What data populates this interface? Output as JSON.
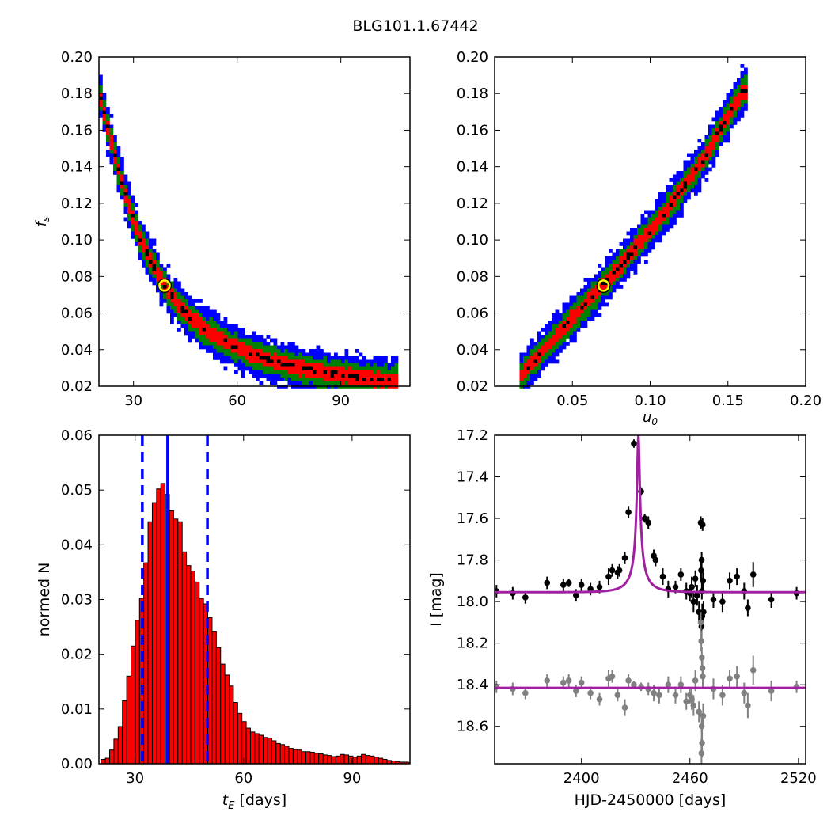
{
  "title": "BLG101.1.67442",
  "chart_data": [
    {
      "type": "heatmap",
      "panel": "top-left",
      "xlabel": "",
      "ylabel": "f_s",
      "xlim": [
        20,
        110
      ],
      "ylim": [
        0.02,
        0.2
      ],
      "xticks": [
        30,
        60,
        90
      ],
      "yticks": [
        0.02,
        0.04,
        0.06,
        0.08,
        0.1,
        0.12,
        0.14,
        0.16,
        0.18,
        0.2
      ],
      "best_fit": {
        "x": 39,
        "y": 0.075
      },
      "contour_colors": {
        "outer": "#0000ff",
        "middle": "#008000",
        "inner": "#ff0000",
        "core": "#000000"
      },
      "ridge": [
        {
          "x": 20,
          "y": 0.182
        },
        {
          "x": 24,
          "y": 0.15
        },
        {
          "x": 28,
          "y": 0.122
        },
        {
          "x": 32,
          "y": 0.1
        },
        {
          "x": 36,
          "y": 0.085
        },
        {
          "x": 40,
          "y": 0.072
        },
        {
          "x": 45,
          "y": 0.06
        },
        {
          "x": 50,
          "y": 0.052
        },
        {
          "x": 55,
          "y": 0.046
        },
        {
          "x": 60,
          "y": 0.041
        },
        {
          "x": 65,
          "y": 0.037
        },
        {
          "x": 70,
          "y": 0.034
        },
        {
          "x": 80,
          "y": 0.029
        },
        {
          "x": 90,
          "y": 0.026
        },
        {
          "x": 100,
          "y": 0.024
        },
        {
          "x": 106,
          "y": 0.023
        }
      ]
    },
    {
      "type": "heatmap",
      "panel": "top-right",
      "xlabel": "u_0",
      "ylabel": "",
      "xlim": [
        0.0,
        0.2
      ],
      "ylim": [
        0.02,
        0.2
      ],
      "xticks": [
        0.05,
        0.1,
        0.15,
        0.2
      ],
      "yticks": [
        0.02,
        0.04,
        0.06,
        0.08,
        0.1,
        0.12,
        0.14,
        0.16,
        0.18,
        0.2
      ],
      "best_fit": {
        "x": 0.07,
        "y": 0.075
      },
      "contour_colors": {
        "outer": "#0000ff",
        "middle": "#008000",
        "inner": "#ff0000",
        "core": "#000000"
      },
      "ridge": [
        {
          "x": 0.016,
          "y": 0.025
        },
        {
          "x": 0.03,
          "y": 0.038
        },
        {
          "x": 0.045,
          "y": 0.053
        },
        {
          "x": 0.06,
          "y": 0.066
        },
        {
          "x": 0.075,
          "y": 0.08
        },
        {
          "x": 0.09,
          "y": 0.095
        },
        {
          "x": 0.105,
          "y": 0.11
        },
        {
          "x": 0.12,
          "y": 0.127
        },
        {
          "x": 0.135,
          "y": 0.145
        },
        {
          "x": 0.148,
          "y": 0.165
        },
        {
          "x": 0.16,
          "y": 0.182
        }
      ]
    },
    {
      "type": "bar",
      "panel": "bottom-left",
      "xlabel": "t_E [days]",
      "ylabel": "normed N",
      "xlim": [
        20,
        106
      ],
      "ylim": [
        0,
        0.06
      ],
      "xticks": [
        30,
        60,
        90
      ],
      "yticks": [
        0.0,
        0.01,
        0.02,
        0.03,
        0.04,
        0.05,
        0.06
      ],
      "bin_start": 20.6,
      "bin_width": 1.18,
      "values": [
        0.0008,
        0.001,
        0.0025,
        0.0045,
        0.0068,
        0.0115,
        0.016,
        0.0215,
        0.0262,
        0.0302,
        0.0367,
        0.0442,
        0.0477,
        0.0502,
        0.0512,
        0.0492,
        0.0462,
        0.0447,
        0.0442,
        0.0387,
        0.0362,
        0.0352,
        0.0332,
        0.0302,
        0.0292,
        0.0267,
        0.0242,
        0.0212,
        0.0182,
        0.0162,
        0.0142,
        0.0112,
        0.0092,
        0.0077,
        0.0065,
        0.0058,
        0.0055,
        0.0052,
        0.0048,
        0.0047,
        0.0042,
        0.0037,
        0.0035,
        0.0032,
        0.0028,
        0.0026,
        0.0025,
        0.0022,
        0.0022,
        0.0021,
        0.0019,
        0.0018,
        0.0016,
        0.0015,
        0.0013,
        0.0014,
        0.0017,
        0.0016,
        0.0014,
        0.0012,
        0.0014,
        0.0017,
        0.0015,
        0.0014,
        0.0012,
        0.001,
        0.0008,
        0.0006,
        0.0005,
        0.0004,
        0.0003,
        0.0003,
        0.0002
      ],
      "bar_color": "#ff0000",
      "vlines": [
        {
          "x": 32,
          "style": "dashed",
          "color": "#0000ff"
        },
        {
          "x": 39,
          "style": "solid",
          "color": "#0000ff"
        },
        {
          "x": 50,
          "style": "dashed",
          "color": "#0000ff"
        }
      ]
    },
    {
      "type": "scatter",
      "panel": "bottom-right",
      "xlabel": "HJD-2450000 [days]",
      "ylabel": "I [mag]",
      "xlim": [
        2352,
        2524
      ],
      "ylim": [
        18.78,
        17.2
      ],
      "xticks": [
        2400,
        2460,
        2520
      ],
      "yticks": [
        17.2,
        17.4,
        17.6,
        17.8,
        18.0,
        18.2,
        18.4,
        18.6
      ],
      "model": {
        "baseline": 17.955,
        "peak_mag": 17.2,
        "t0": 2431.5,
        "color": "#a020a0"
      },
      "residual_offset": 18.415,
      "series": [
        {
          "name": "",
          "color": "#000000",
          "points": [
            {
              "x": 2353,
              "y": 17.95,
              "e": 0.03
            },
            {
              "x": 2362,
              "y": 17.96,
              "e": 0.03
            },
            {
              "x": 2369,
              "y": 17.98,
              "e": 0.03
            },
            {
              "x": 2381,
              "y": 17.91,
              "e": 0.03
            },
            {
              "x": 2390,
              "y": 17.92,
              "e": 0.03
            },
            {
              "x": 2393,
              "y": 17.91,
              "e": 0.02
            },
            {
              "x": 2397,
              "y": 17.97,
              "e": 0.03
            },
            {
              "x": 2400,
              "y": 17.92,
              "e": 0.03
            },
            {
              "x": 2405,
              "y": 17.94,
              "e": 0.03
            },
            {
              "x": 2410,
              "y": 17.93,
              "e": 0.03
            },
            {
              "x": 2415,
              "y": 17.88,
              "e": 0.04
            },
            {
              "x": 2417,
              "y": 17.85,
              "e": 0.03
            },
            {
              "x": 2420,
              "y": 17.86,
              "e": 0.03
            },
            {
              "x": 2421,
              "y": 17.85,
              "e": 0.03
            },
            {
              "x": 2424,
              "y": 17.79,
              "e": 0.03
            },
            {
              "x": 2426,
              "y": 17.57,
              "e": 0.03
            },
            {
              "x": 2429,
              "y": 17.24,
              "e": 0.02
            },
            {
              "x": 2433,
              "y": 17.47,
              "e": 0.02
            },
            {
              "x": 2435,
              "y": 17.6,
              "e": 0.02
            },
            {
              "x": 2437,
              "y": 17.62,
              "e": 0.03
            },
            {
              "x": 2440,
              "y": 17.78,
              "e": 0.03
            },
            {
              "x": 2441,
              "y": 17.8,
              "e": 0.03
            },
            {
              "x": 2445,
              "y": 17.88,
              "e": 0.04
            },
            {
              "x": 2448,
              "y": 17.94,
              "e": 0.04
            },
            {
              "x": 2452,
              "y": 17.93,
              "e": 0.03
            },
            {
              "x": 2455,
              "y": 17.87,
              "e": 0.03
            },
            {
              "x": 2458,
              "y": 17.95,
              "e": 0.04
            },
            {
              "x": 2460,
              "y": 17.96,
              "e": 0.04
            },
            {
              "x": 2461,
              "y": 17.93,
              "e": 0.05
            },
            {
              "x": 2462,
              "y": 18.0,
              "e": 0.05
            },
            {
              "x": 2463,
              "y": 17.89,
              "e": 0.04
            },
            {
              "x": 2464,
              "y": 17.97,
              "e": 0.05
            },
            {
              "x": 2465,
              "y": 18.05,
              "e": 0.05
            },
            {
              "x": 2466,
              "y": 17.62,
              "e": 0.03
            },
            {
              "x": 2467,
              "y": 17.63,
              "e": 0.03
            },
            {
              "x": 2466.5,
              "y": 17.8,
              "e": 0.04
            },
            {
              "x": 2466.2,
              "y": 17.85,
              "e": 0.04
            },
            {
              "x": 2467.2,
              "y": 17.9,
              "e": 0.04
            },
            {
              "x": 2466.6,
              "y": 17.95,
              "e": 0.04
            },
            {
              "x": 2467.5,
              "y": 18.05,
              "e": 0.05
            },
            {
              "x": 2466.8,
              "y": 18.07,
              "e": 0.06
            },
            {
              "x": 2466.4,
              "y": 18.12,
              "e": 0.06
            },
            {
              "x": 2473,
              "y": 17.99,
              "e": 0.04
            },
            {
              "x": 2478,
              "y": 18.0,
              "e": 0.05
            },
            {
              "x": 2482,
              "y": 17.9,
              "e": 0.04
            },
            {
              "x": 2486,
              "y": 17.88,
              "e": 0.04
            },
            {
              "x": 2490,
              "y": 17.95,
              "e": 0.04
            },
            {
              "x": 2492,
              "y": 18.03,
              "e": 0.04
            },
            {
              "x": 2495,
              "y": 17.87,
              "e": 0.06
            },
            {
              "x": 2505,
              "y": 17.99,
              "e": 0.04
            },
            {
              "x": 2519,
              "y": 17.96,
              "e": 0.03
            }
          ]
        },
        {
          "name": "",
          "color": "#808080",
          "points": [
            {
              "x": 2353,
              "y": 18.41,
              "e": 0.03
            },
            {
              "x": 2362,
              "y": 18.42,
              "e": 0.03
            },
            {
              "x": 2369,
              "y": 18.44,
              "e": 0.03
            },
            {
              "x": 2381,
              "y": 18.38,
              "e": 0.03
            },
            {
              "x": 2390,
              "y": 18.39,
              "e": 0.03
            },
            {
              "x": 2393,
              "y": 18.38,
              "e": 0.03
            },
            {
              "x": 2397,
              "y": 18.43,
              "e": 0.03
            },
            {
              "x": 2400,
              "y": 18.39,
              "e": 0.03
            },
            {
              "x": 2405,
              "y": 18.44,
              "e": 0.03
            },
            {
              "x": 2410,
              "y": 18.47,
              "e": 0.03
            },
            {
              "x": 2415,
              "y": 18.37,
              "e": 0.04
            },
            {
              "x": 2417,
              "y": 18.36,
              "e": 0.03
            },
            {
              "x": 2420,
              "y": 18.45,
              "e": 0.03
            },
            {
              "x": 2424,
              "y": 18.51,
              "e": 0.04
            },
            {
              "x": 2426,
              "y": 18.38,
              "e": 0.03
            },
            {
              "x": 2429,
              "y": 18.4,
              "e": 0.02
            },
            {
              "x": 2433,
              "y": 18.41,
              "e": 0.02
            },
            {
              "x": 2437,
              "y": 18.42,
              "e": 0.03
            },
            {
              "x": 2440,
              "y": 18.44,
              "e": 0.04
            },
            {
              "x": 2443,
              "y": 18.45,
              "e": 0.04
            },
            {
              "x": 2448,
              "y": 18.4,
              "e": 0.04
            },
            {
              "x": 2452,
              "y": 18.45,
              "e": 0.04
            },
            {
              "x": 2455,
              "y": 18.4,
              "e": 0.04
            },
            {
              "x": 2458,
              "y": 18.48,
              "e": 0.04
            },
            {
              "x": 2460,
              "y": 18.45,
              "e": 0.04
            },
            {
              "x": 2461,
              "y": 18.47,
              "e": 0.05
            },
            {
              "x": 2462,
              "y": 18.5,
              "e": 0.05
            },
            {
              "x": 2463,
              "y": 18.38,
              "e": 0.05
            },
            {
              "x": 2465,
              "y": 18.53,
              "e": 0.05
            },
            {
              "x": 2466,
              "y": 18.1,
              "e": 0.05
            },
            {
              "x": 2466.3,
              "y": 18.19,
              "e": 0.05
            },
            {
              "x": 2466.6,
              "y": 18.27,
              "e": 0.05
            },
            {
              "x": 2466.9,
              "y": 18.32,
              "e": 0.05
            },
            {
              "x": 2467.1,
              "y": 18.36,
              "e": 0.05
            },
            {
              "x": 2466.5,
              "y": 18.6,
              "e": 0.06
            },
            {
              "x": 2466.7,
              "y": 18.68,
              "e": 0.07
            },
            {
              "x": 2466.4,
              "y": 18.73,
              "e": 0.07
            },
            {
              "x": 2467.3,
              "y": 18.55,
              "e": 0.06
            },
            {
              "x": 2473,
              "y": 18.42,
              "e": 0.05
            },
            {
              "x": 2478,
              "y": 18.45,
              "e": 0.05
            },
            {
              "x": 2482,
              "y": 18.37,
              "e": 0.04
            },
            {
              "x": 2486,
              "y": 18.36,
              "e": 0.05
            },
            {
              "x": 2490,
              "y": 18.44,
              "e": 0.05
            },
            {
              "x": 2492,
              "y": 18.5,
              "e": 0.06
            },
            {
              "x": 2495,
              "y": 18.33,
              "e": 0.07
            },
            {
              "x": 2505,
              "y": 18.43,
              "e": 0.05
            },
            {
              "x": 2519,
              "y": 18.41,
              "e": 0.03
            }
          ]
        }
      ]
    }
  ]
}
